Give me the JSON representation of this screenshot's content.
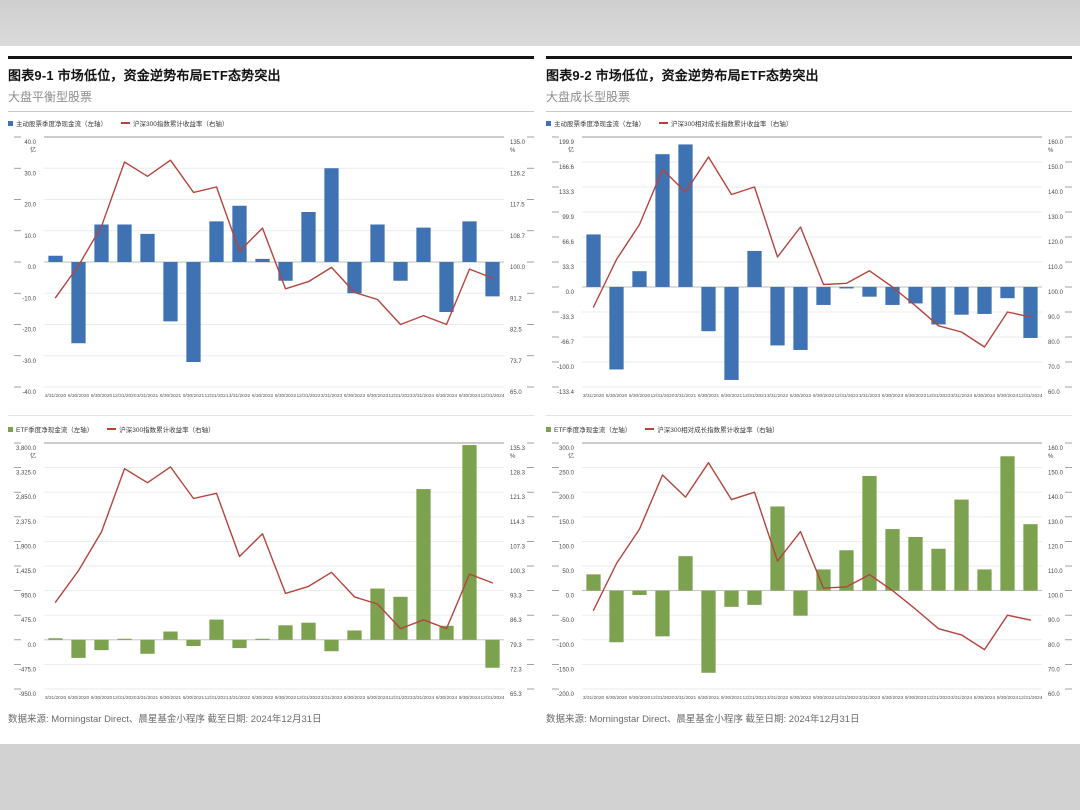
{
  "panels": [
    {
      "title": "图表9-1 市场低位，资金逆势布局ETF态势突出",
      "subtitle": "大盘平衡型股票",
      "footer": "数据来源: Morningstar Direct、晨星基金小程序 截至日期: 2024年12月31日"
    },
    {
      "title": "图表9-2 市场低位，资金逆势布局ETF态势突出",
      "subtitle": "大盘成长型股票",
      "footer": "数据来源: Morningstar Direct、晨星基金小程序 截至日期: 2024年12月31日"
    }
  ],
  "colors": {
    "bar_blue": "#3E72B3",
    "bar_green": "#7CA14F",
    "line_red": "#B5443E"
  },
  "chart_data": [
    {
      "type": "bar+line",
      "name": "大盘平衡型股票 — 主动股票资金流 vs 沪深300",
      "panel": 0,
      "categories": [
        "3/31/2020",
        "6/30/2020",
        "9/30/2020",
        "12/31/2020",
        "3/31/2021",
        "6/30/2021",
        "9/30/2021",
        "12/31/2021",
        "3/31/2022",
        "6/30/2022",
        "9/30/2022",
        "12/31/2022",
        "3/31/2023",
        "6/30/2023",
        "9/30/2023",
        "12/31/2023",
        "3/31/2024",
        "6/30/2024",
        "9/30/2024",
        "12/31/2024"
      ],
      "series": [
        {
          "name": "主动股票季度净现金流（左轴）",
          "type": "bar",
          "axis": "left",
          "color": "#3E72B3",
          "values": [
            2,
            -26,
            12,
            12,
            9,
            -19,
            -32,
            13,
            18,
            1,
            -6,
            16,
            30,
            -10,
            12,
            -6,
            11,
            -16,
            13,
            -11
          ]
        },
        {
          "name": "沪深300指数累计收益率（右轴）",
          "type": "line",
          "axis": "right",
          "color": "#B5443E",
          "values": [
            90,
            99,
            110,
            128,
            124,
            128.5,
            119.5,
            121,
            103,
            109.5,
            92.5,
            94.5,
            98.5,
            91.5,
            89.5,
            82.5,
            85,
            82.5,
            98,
            95.5
          ]
        }
      ],
      "left_axis": {
        "unit": "亿",
        "min": -40,
        "max": 40,
        "tick_labels": [
          "40.0",
          "30.0",
          "20.0",
          "10.0",
          "0.0",
          "-10.0",
          "-20.0",
          "-30.0",
          "-40.0"
        ]
      },
      "right_axis": {
        "unit": "%",
        "min": 65,
        "max": 135,
        "tick_labels": [
          "135.0",
          "126.2",
          "117.5",
          "108.7",
          "100.0",
          "91.2",
          "82.5",
          "73.7",
          "65.0"
        ]
      },
      "grid": true,
      "legend_position": "top"
    },
    {
      "type": "bar+line",
      "name": "大盘平衡型股票 — ETF资金流 vs 沪深300",
      "panel": 0,
      "categories": [
        "3/31/2020",
        "6/30/2020",
        "9/30/2020",
        "12/31/2020",
        "3/31/2021",
        "6/30/2021",
        "9/30/2021",
        "12/31/2021",
        "3/31/2022",
        "6/30/2022",
        "9/30/2022",
        "12/31/2022",
        "3/31/2023",
        "6/30/2023",
        "9/30/2023",
        "12/31/2023",
        "3/31/2024",
        "6/30/2024",
        "9/30/2024",
        "12/31/2024"
      ],
      "series": [
        {
          "name": "ETF季度净现金流（左轴）",
          "type": "bar",
          "axis": "left",
          "color": "#7CA14F",
          "values": [
            30,
            -350,
            -200,
            20,
            -270,
            160,
            -120,
            390,
            -160,
            20,
            280,
            330,
            -220,
            180,
            990,
            830,
            2910,
            270,
            3760,
            -540
          ]
        },
        {
          "name": "沪深300指数累计收益率（右轴）",
          "type": "line",
          "axis": "right",
          "color": "#B5443E",
          "values": [
            90,
            99,
            110,
            128,
            124,
            128.5,
            119.5,
            121,
            103,
            109.5,
            92.5,
            94.5,
            98.5,
            91.5,
            89.5,
            82.5,
            85,
            82.5,
            98,
            95.5
          ]
        }
      ],
      "left_axis": {
        "unit": "亿",
        "min": -950,
        "max": 3800,
        "tick_labels": [
          "3,800.0",
          "3,325.0",
          "2,850.0",
          "2,375.0",
          "1,900.0",
          "1,425.0",
          "950.0",
          "475.0",
          "0.0",
          "-475.0",
          "-950.0"
        ]
      },
      "right_axis": {
        "unit": "%",
        "min": 65.3,
        "max": 135.3,
        "tick_labels": [
          "135.3",
          "128.3",
          "121.3",
          "114.3",
          "107.3",
          "100.3",
          "93.3",
          "86.3",
          "79.3",
          "72.3",
          "65.3"
        ]
      },
      "grid": true,
      "legend_position": "top"
    },
    {
      "type": "bar+line",
      "name": "大盘成长型股票 — 主动股票资金流 vs 沪深300相对成长指数",
      "panel": 1,
      "categories": [
        "3/31/2020",
        "6/30/2020",
        "9/30/2020",
        "12/31/2020",
        "3/31/2021",
        "6/30/2021",
        "9/30/2021",
        "12/31/2021",
        "3/31/2022",
        "6/30/2022",
        "9/30/2022",
        "12/31/2022",
        "3/31/2023",
        "6/30/2023",
        "9/30/2023",
        "12/31/2023",
        "3/31/2024",
        "6/30/2024",
        "9/30/2024",
        "12/31/2024"
      ],
      "series": [
        {
          "name": "主动股票季度净现金流（左轴）",
          "type": "bar",
          "axis": "left",
          "color": "#3E72B3",
          "values": [
            70,
            -110,
            21,
            177,
            190,
            -59,
            -124,
            48,
            -78,
            -84,
            -24,
            -2,
            -13,
            -24,
            -22,
            -50,
            -37,
            -36,
            -15,
            -68
          ]
        },
        {
          "name": "沪深300相对成长指数累计收益率（右轴）",
          "type": "line",
          "axis": "right",
          "color": "#B5443E",
          "values": [
            92,
            111,
            125,
            147,
            138,
            152,
            137,
            140,
            112,
            124,
            101,
            101.5,
            106.5,
            100,
            92.5,
            84.5,
            82,
            76,
            90,
            88
          ]
        }
      ],
      "left_axis": {
        "unit": "亿",
        "min": -133.4,
        "max": 199.9,
        "tick_labels": [
          "199.9",
          "166.6",
          "133.3",
          "99.9",
          "66.6",
          "33.3",
          "0.0",
          "-33.3",
          "-66.7",
          "-100.0",
          "-133.4"
        ]
      },
      "right_axis": {
        "unit": "%",
        "min": 60,
        "max": 160,
        "tick_labels": [
          "160.0",
          "150.0",
          "140.0",
          "130.0",
          "120.0",
          "110.0",
          "100.0",
          "90.0",
          "80.0",
          "70.0",
          "60.0"
        ]
      },
      "grid": true,
      "legend_position": "top"
    },
    {
      "type": "bar+line",
      "name": "大盘成长型股票 — ETF资金流 vs 沪深300相对成长指数",
      "panel": 1,
      "categories": [
        "3/31/2020",
        "6/30/2020",
        "9/30/2020",
        "12/31/2020",
        "3/31/2021",
        "6/30/2021",
        "9/30/2021",
        "12/31/2021",
        "3/31/2022",
        "6/30/2022",
        "9/30/2022",
        "12/31/2022",
        "3/31/2023",
        "6/30/2023",
        "9/30/2023",
        "12/31/2023",
        "3/31/2024",
        "6/30/2024",
        "9/30/2024",
        "12/31/2024"
      ],
      "series": [
        {
          "name": "ETF季度净现金流（左轴）",
          "type": "bar",
          "axis": "left",
          "color": "#7CA14F",
          "values": [
            33,
            -105,
            -9,
            -93,
            70,
            -167,
            -33,
            -29,
            171,
            -51,
            43,
            82,
            233,
            125,
            109,
            85,
            185,
            43,
            273,
            135
          ]
        },
        {
          "name": "沪深300相对成长指数累计收益率（右轴）",
          "type": "line",
          "axis": "right",
          "color": "#B5443E",
          "values": [
            92,
            111,
            125,
            147,
            138,
            152,
            137,
            140,
            112,
            124,
            101,
            101.5,
            106.5,
            100,
            92.5,
            84.5,
            82,
            76,
            90,
            88
          ]
        }
      ],
      "left_axis": {
        "unit": "亿",
        "min": -200,
        "max": 300,
        "tick_labels": [
          "300.0",
          "250.0",
          "200.0",
          "150.0",
          "100.0",
          "50.0",
          "0.0",
          "-50.0",
          "-100.0",
          "-150.0",
          "-200.0"
        ]
      },
      "right_axis": {
        "unit": "%",
        "min": 60,
        "max": 160,
        "tick_labels": [
          "160.0",
          "150.0",
          "140.0",
          "130.0",
          "120.0",
          "110.0",
          "100.0",
          "90.0",
          "80.0",
          "70.0",
          "60.0"
        ]
      },
      "grid": true,
      "legend_position": "top"
    }
  ]
}
